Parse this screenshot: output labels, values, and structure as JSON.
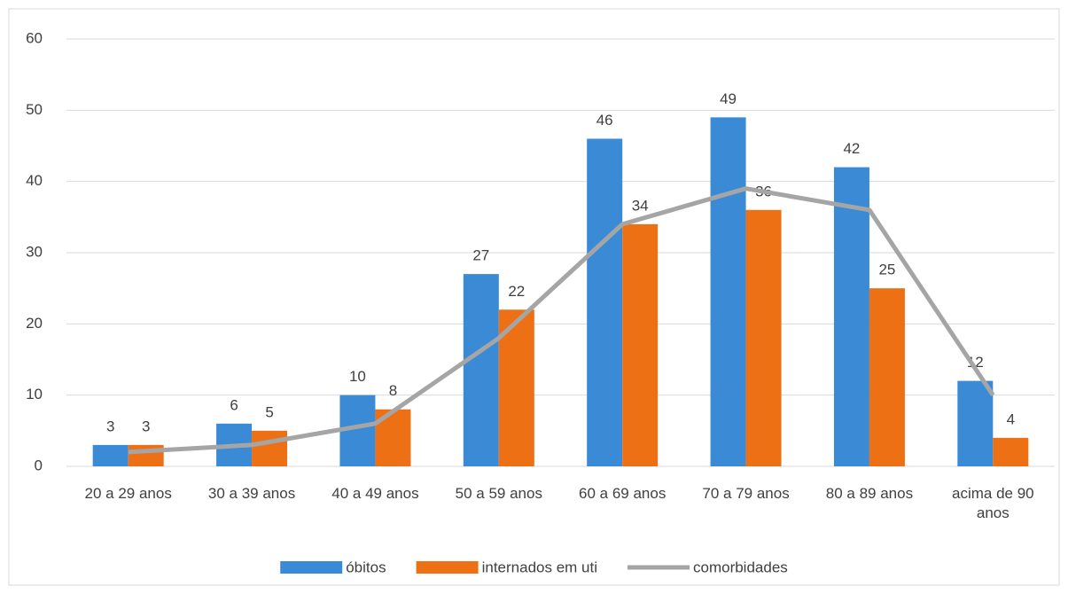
{
  "chart_data": {
    "type": "bar-line",
    "categories": [
      "20 a 29 anos",
      "30 a 39 anos",
      "40 a 49 anos",
      "50 a 59 anos",
      "60 a 69 anos",
      "70 a 79 anos",
      "80 a 89 anos",
      "acima de 90 anos"
    ],
    "series": [
      {
        "name": "óbitos",
        "type": "bar",
        "color": "#3a8ad6",
        "values": [
          3,
          6,
          10,
          27,
          46,
          49,
          42,
          12
        ]
      },
      {
        "name": "internados em uti",
        "type": "bar",
        "color": "#ed7015",
        "values": [
          3,
          5,
          8,
          22,
          34,
          36,
          25,
          4
        ]
      },
      {
        "name": "comorbidades",
        "type": "line",
        "color": "#a5a5a5",
        "values": [
          2,
          3,
          6,
          18,
          34,
          39,
          36,
          10
        ]
      }
    ],
    "ylim": [
      0,
      60
    ],
    "yticks": [
      0,
      10,
      20,
      30,
      40,
      50,
      60
    ],
    "grid": true,
    "legend": "bottom"
  }
}
